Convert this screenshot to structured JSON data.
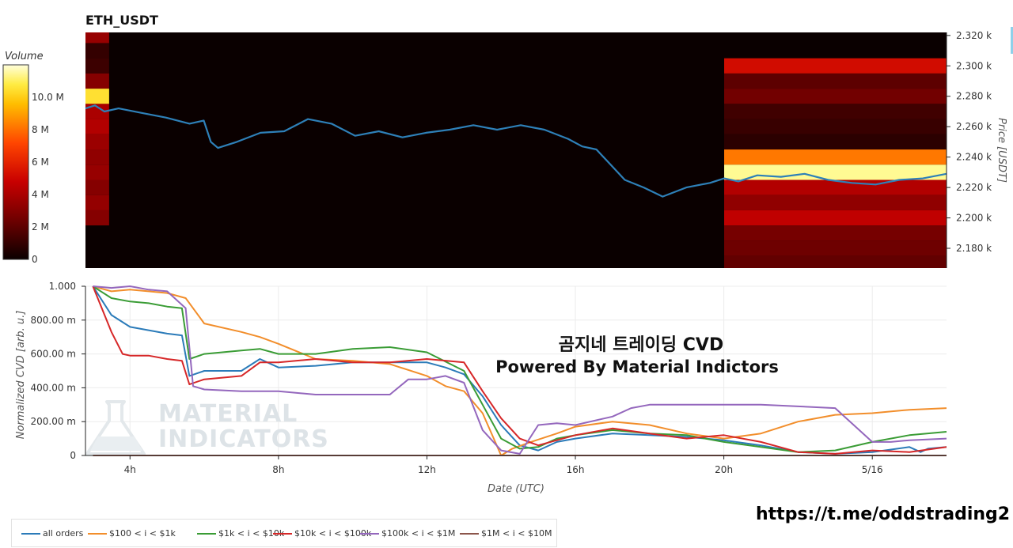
{
  "header": {
    "symbol": "ETH_USDT"
  },
  "watermark": {
    "line1": "MATERIAL",
    "line2": "INDICATORS"
  },
  "annotation": {
    "title_korean": "곰지네 트레이딩 CVD",
    "powered_by": "Powered By Material Indictors"
  },
  "footer": {
    "link": "https://t.me/oddstrading2"
  },
  "colors": {
    "background": "#ffffff",
    "heatmap_bg": "#0a0000",
    "price_line": "#2e80b8"
  },
  "chart_data": [
    {
      "type": "heatmap",
      "id": "price-heatmap",
      "ylabel": "Price [USDT]",
      "y_tick_labels": [
        "2.320 k",
        "2.300 k",
        "2.280 k",
        "2.260 k",
        "2.240 k",
        "2.220 k",
        "2.200 k",
        "2.180 k"
      ],
      "y_ticks": [
        2320,
        2300,
        2280,
        2260,
        2240,
        2220,
        2200,
        2180
      ],
      "ylim": [
        2167,
        2322
      ],
      "xlim": [
        2.8,
        21.0
      ],
      "colorbar": {
        "label": "Volume",
        "tick_labels": [
          "10.0 M",
          "8 M",
          "6 M",
          "4 M",
          "2 M",
          "0"
        ],
        "ticks": [
          10,
          8,
          6,
          4,
          2,
          0
        ],
        "range": [
          0,
          12
        ],
        "units": "M"
      },
      "price_levels": [
        2320,
        2310,
        2300,
        2290,
        2280,
        2270,
        2260,
        2250,
        2240,
        2230,
        2220,
        2210,
        2200,
        2190,
        2180,
        2170
      ],
      "left_block": {
        "x_range": [
          2.8,
          3.3
        ],
        "volumes": [
          3.5,
          1.0,
          1.2,
          3.0,
          10.5,
          4.0,
          4.2,
          3.6,
          3.3,
          3.5,
          3.0,
          3.4,
          3.0,
          0,
          0,
          0
        ]
      },
      "right_block": {
        "x_range": [
          16.3,
          21.0
        ],
        "volumes": [
          0,
          0,
          5.2,
          2.0,
          2.5,
          1.3,
          1.1,
          0.8,
          8.2,
          11.5,
          4.2,
          3.3,
          4.6,
          2.6,
          2.4,
          2.1
        ]
      },
      "price_series": {
        "name": "Price",
        "x": [
          2.8,
          3.0,
          3.2,
          3.5,
          4.0,
          4.5,
          5.0,
          5.3,
          5.45,
          5.6,
          6.0,
          6.5,
          7.0,
          7.5,
          8.0,
          8.5,
          9.0,
          9.5,
          10.0,
          10.5,
          11.0,
          11.5,
          12.0,
          12.5,
          13.0,
          13.3,
          13.6,
          13.9,
          14.2,
          14.6,
          15.0,
          15.5,
          16.0,
          16.3,
          16.6,
          17.0,
          17.5,
          18.0,
          18.5,
          19.0,
          19.5,
          20.0,
          20.5,
          21.0
        ],
        "y": [
          2272,
          2274,
          2270,
          2272,
          2269,
          2266,
          2262,
          2264,
          2250,
          2246,
          2250,
          2256,
          2257,
          2265,
          2262,
          2254,
          2257,
          2253,
          2256,
          2258,
          2261,
          2258,
          2261,
          2258,
          2252,
          2247,
          2245,
          2235,
          2225,
          2220,
          2214,
          2220,
          2223,
          2226,
          2224,
          2228,
          2227,
          2229,
          2225,
          2223,
          2222,
          2225,
          2226,
          2229
        ]
      }
    },
    {
      "type": "line",
      "id": "cvd-lines",
      "xlabel": "Date (UTC)",
      "ylabel": "Normalized CVD [arb. u.]",
      "x_tick_labels": [
        "4h",
        "8h",
        "12h",
        "16h",
        "20h",
        "5/16"
      ],
      "x_ticks": [
        4,
        8,
        12,
        16,
        20,
        24
      ],
      "y_tick_labels": [
        "1.000",
        "800.00 m",
        "600.00 m",
        "400.00 m",
        "200.00 m",
        "0"
      ],
      "y_ticks": [
        1.0,
        0.8,
        0.6,
        0.4,
        0.2,
        0
      ],
      "xlim": [
        2.8,
        26.0
      ],
      "ylim": [
        0,
        1.0
      ],
      "grid": true,
      "legend": "bottom-left",
      "series": [
        {
          "name": "all orders",
          "color": "#2b7bb9",
          "x": [
            3.0,
            3.5,
            4.0,
            4.5,
            5.0,
            5.4,
            5.6,
            6.0,
            7.0,
            7.5,
            8.0,
            9.0,
            10.0,
            11.0,
            12.0,
            12.5,
            13.0,
            13.5,
            14.0,
            14.5,
            15.0,
            15.5,
            16.0,
            17.0,
            18.0,
            19.0,
            20.0,
            21.0,
            22.0,
            23.0,
            24.0,
            25.0,
            25.3,
            25.5,
            26.0
          ],
          "y": [
            1.0,
            0.83,
            0.76,
            0.74,
            0.72,
            0.71,
            0.47,
            0.5,
            0.5,
            0.57,
            0.52,
            0.53,
            0.55,
            0.55,
            0.55,
            0.52,
            0.48,
            0.35,
            0.18,
            0.06,
            0.03,
            0.08,
            0.1,
            0.13,
            0.12,
            0.11,
            0.09,
            0.06,
            0.02,
            0.01,
            0.02,
            0.05,
            0.02,
            0.04,
            0.05
          ]
        },
        {
          "name": "$100 < i < $1k",
          "color": "#f28e2b",
          "x": [
            3.0,
            3.5,
            4.0,
            4.5,
            5.0,
            5.5,
            6.0,
            7.0,
            7.5,
            8.0,
            9.0,
            10.0,
            11.0,
            12.0,
            12.5,
            13.0,
            13.5,
            13.8,
            14.0,
            14.3,
            14.8,
            15.5,
            16.0,
            17.0,
            18.0,
            19.0,
            20.0,
            21.0,
            22.0,
            23.0,
            24.0,
            25.0,
            26.0
          ],
          "y": [
            1.0,
            0.97,
            0.98,
            0.97,
            0.96,
            0.93,
            0.78,
            0.73,
            0.7,
            0.66,
            0.57,
            0.56,
            0.54,
            0.47,
            0.41,
            0.38,
            0.25,
            0.1,
            0.0,
            0.04,
            0.08,
            0.13,
            0.17,
            0.2,
            0.18,
            0.13,
            0.1,
            0.13,
            0.2,
            0.24,
            0.25,
            0.27,
            0.28
          ]
        },
        {
          "name": "$1k < i < $10k",
          "color": "#3a9c35",
          "x": [
            3.0,
            3.5,
            4.0,
            4.5,
            5.0,
            5.4,
            5.6,
            6.0,
            7.0,
            7.5,
            8.0,
            9.0,
            10.0,
            11.0,
            12.0,
            13.0,
            13.5,
            14.0,
            14.5,
            15.0,
            15.5,
            16.0,
            17.0,
            18.0,
            19.0,
            20.0,
            21.0,
            22.0,
            23.0,
            24.0,
            25.0,
            26.0
          ],
          "y": [
            1.0,
            0.93,
            0.91,
            0.9,
            0.88,
            0.87,
            0.57,
            0.6,
            0.62,
            0.63,
            0.6,
            0.6,
            0.63,
            0.64,
            0.61,
            0.5,
            0.3,
            0.1,
            0.04,
            0.05,
            0.1,
            0.12,
            0.15,
            0.13,
            0.12,
            0.08,
            0.05,
            0.02,
            0.03,
            0.08,
            0.12,
            0.14
          ]
        },
        {
          "name": "$10k < i < $100k",
          "color": "#d62728",
          "x": [
            3.0,
            3.5,
            3.8,
            4.0,
            4.5,
            5.0,
            5.4,
            5.6,
            6.0,
            7.0,
            7.5,
            8.0,
            9.0,
            10.0,
            11.0,
            12.0,
            13.0,
            13.5,
            14.0,
            14.5,
            15.0,
            15.5,
            16.0,
            17.0,
            18.0,
            19.0,
            20.0,
            21.0,
            22.0,
            23.0,
            24.0,
            25.0,
            26.0
          ],
          "y": [
            1.0,
            0.73,
            0.6,
            0.59,
            0.59,
            0.57,
            0.56,
            0.42,
            0.45,
            0.47,
            0.55,
            0.55,
            0.57,
            0.55,
            0.55,
            0.57,
            0.55,
            0.38,
            0.22,
            0.1,
            0.06,
            0.09,
            0.12,
            0.16,
            0.13,
            0.1,
            0.12,
            0.08,
            0.02,
            0.01,
            0.03,
            0.02,
            0.05
          ]
        },
        {
          "name": "$100k < i < $1M",
          "color": "#9467bd",
          "x": [
            3.0,
            3.5,
            4.0,
            4.5,
            5.0,
            5.5,
            5.7,
            6.0,
            7.0,
            8.0,
            9.0,
            10.0,
            11.0,
            11.5,
            12.0,
            12.5,
            13.0,
            13.5,
            14.0,
            14.5,
            15.0,
            15.5,
            16.0,
            17.0,
            17.5,
            18.0,
            19.0,
            20.0,
            21.0,
            22.0,
            23.0,
            24.0,
            24.5,
            25.0,
            26.0
          ],
          "y": [
            1.0,
            0.99,
            1.0,
            0.98,
            0.97,
            0.87,
            0.41,
            0.39,
            0.38,
            0.38,
            0.36,
            0.36,
            0.36,
            0.45,
            0.45,
            0.47,
            0.43,
            0.15,
            0.03,
            0.01,
            0.18,
            0.19,
            0.18,
            0.23,
            0.28,
            0.3,
            0.3,
            0.3,
            0.3,
            0.29,
            0.28,
            0.08,
            0.08,
            0.09,
            0.1
          ]
        },
        {
          "name": "$1M < i < $10M",
          "color": "#8c564b",
          "x": [
            3.0,
            3.5,
            4.0,
            5.0,
            6.0,
            7.0,
            8.0,
            9.0,
            10.0,
            11.0,
            12.0,
            13.0,
            14.0,
            15.0,
            16.0,
            17.0,
            18.0,
            19.0,
            20.0,
            21.0,
            22.0,
            23.0,
            24.0,
            25.0,
            26.0
          ],
          "y": [
            0.0,
            0.0,
            0.0,
            0.0,
            0.0,
            0.0,
            0.0,
            0.0,
            0.0,
            0.0,
            0.0,
            0.0,
            0.0,
            0.0,
            0.0,
            0.0,
            0.0,
            0.0,
            0.0,
            0.0,
            0.0,
            0.0,
            0.0,
            0.0,
            0.0
          ]
        }
      ]
    }
  ]
}
